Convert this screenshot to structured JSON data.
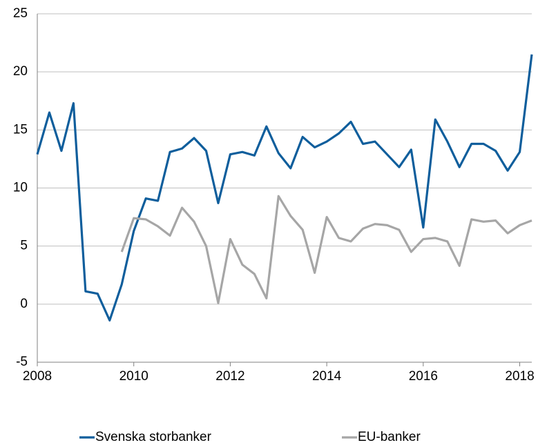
{
  "chart_data": {
    "type": "line",
    "x": [
      2008,
      2008.25,
      2008.5,
      2008.75,
      2009,
      2009.25,
      2009.5,
      2009.75,
      2010,
      2010.25,
      2010.5,
      2010.75,
      2011,
      2011.25,
      2011.5,
      2011.75,
      2012,
      2012.25,
      2012.5,
      2012.75,
      2013,
      2013.25,
      2013.5,
      2013.75,
      2014,
      2014.25,
      2014.5,
      2014.75,
      2015,
      2015.25,
      2015.5,
      2015.75,
      2016,
      2016.25,
      2016.5,
      2016.75,
      2017,
      2017.25,
      2017.5,
      2017.75,
      2018,
      2018.25
    ],
    "series": [
      {
        "name": "Svenska storbanker",
        "color": "#0f5e9c",
        "values": [
          12.9,
          16.5,
          13.2,
          17.3,
          1.1,
          0.9,
          -1.4,
          1.7,
          6.3,
          9.1,
          8.9,
          13.1,
          13.4,
          14.3,
          13.2,
          8.7,
          12.9,
          13.1,
          12.8,
          15.3,
          13.0,
          11.7,
          14.4,
          13.5,
          14.0,
          14.7,
          15.7,
          13.8,
          14.0,
          12.9,
          11.8,
          13.3,
          6.6,
          15.9,
          14.0,
          11.8,
          13.8,
          13.8,
          13.2,
          11.5,
          13.1,
          21.5
        ]
      },
      {
        "name": "EU-banker",
        "color": "#a6a6a6",
        "values": [
          null,
          null,
          null,
          null,
          null,
          null,
          null,
          4.5,
          7.4,
          7.3,
          6.7,
          5.9,
          8.3,
          7.1,
          5.0,
          0.1,
          5.6,
          3.4,
          2.6,
          0.5,
          9.3,
          7.6,
          6.4,
          2.7,
          7.5,
          5.7,
          5.4,
          6.5,
          6.9,
          6.8,
          6.4,
          4.5,
          5.6,
          5.7,
          5.4,
          3.3,
          7.3,
          7.1,
          7.2,
          6.1,
          6.8,
          7.2
        ]
      }
    ],
    "xlim": [
      2008,
      2018.25
    ],
    "xticks": [
      2008,
      2010,
      2012,
      2014,
      2016,
      2018
    ],
    "ylim": [
      -5,
      25
    ],
    "yticks": [
      -5,
      0,
      5,
      10,
      15,
      20,
      25
    ],
    "grid": true,
    "legend": "bottom"
  }
}
